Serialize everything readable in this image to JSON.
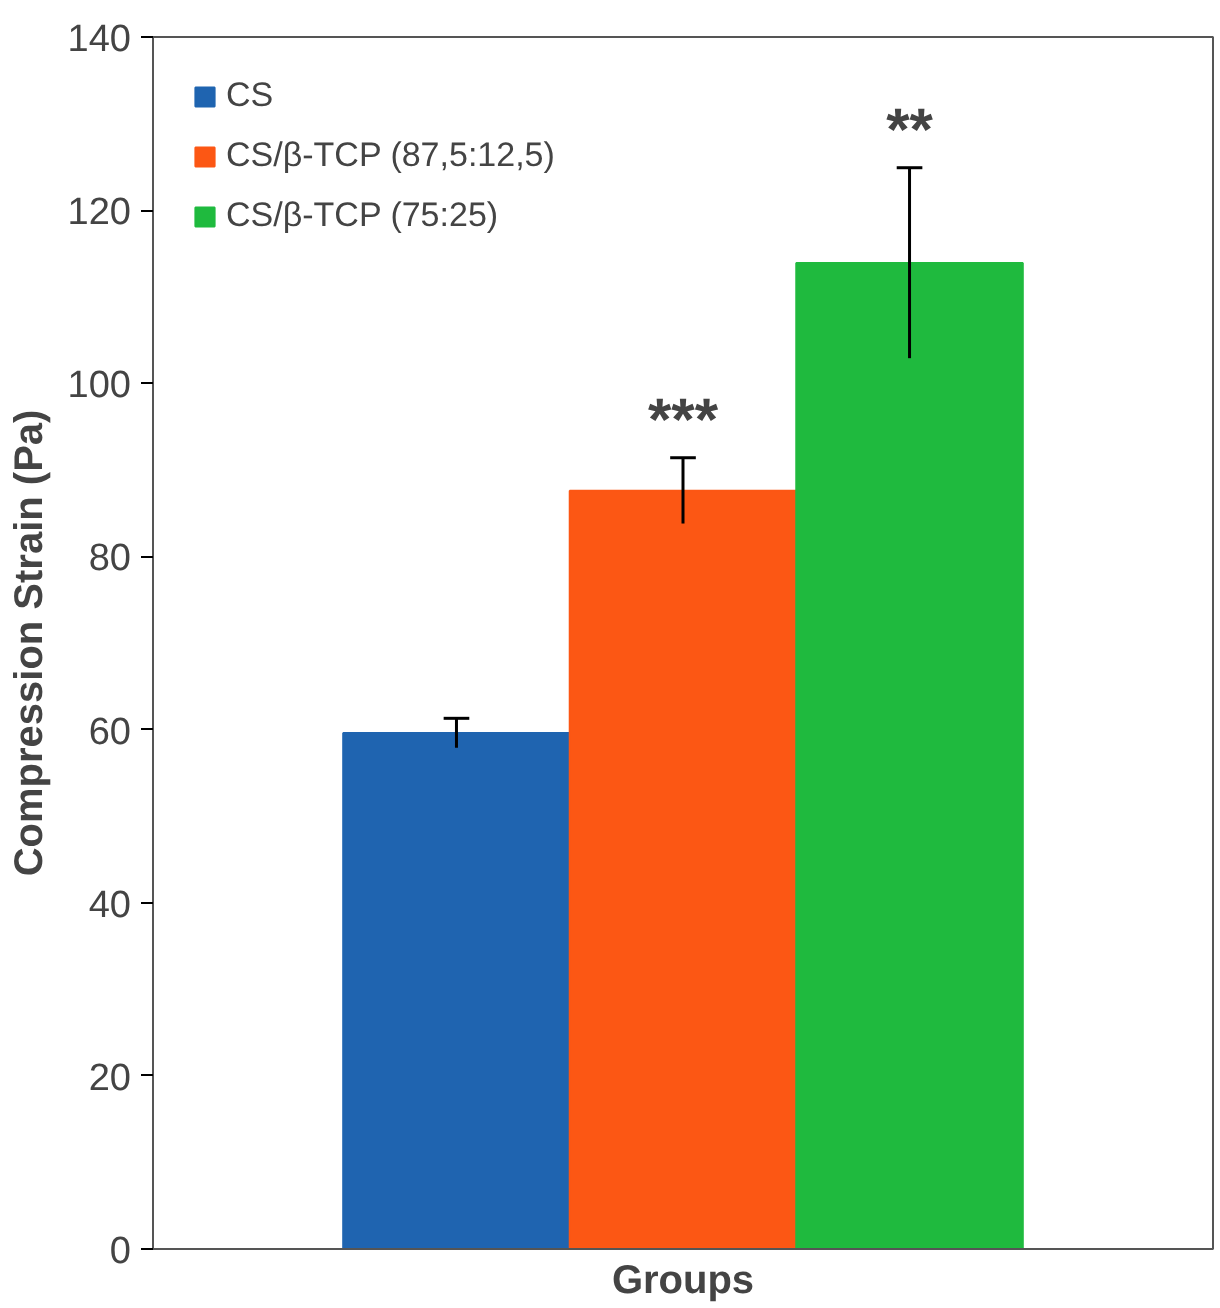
{
  "chart_data": {
    "type": "bar",
    "xlabel": "Groups",
    "ylabel": "Compression Strain (Pa)",
    "categories": [
      null
    ],
    "series": [
      {
        "name": "CS",
        "color": "#1f64b0",
        "values": [
          59.6
        ],
        "errors": [
          1.7
        ]
      },
      {
        "name": "CS/β-TCP (87,5:12,5)",
        "color": "#fc5714",
        "values": [
          87.6
        ],
        "errors": [
          3.8
        ]
      },
      {
        "name": "CS/β-TCP (75:25)",
        "color": "#1fba3e",
        "values": [
          113.9
        ],
        "errors": [
          11
        ]
      }
    ],
    "ylim": [
      0,
      140
    ],
    "yticks": [
      0,
      20,
      40,
      60,
      80,
      100,
      120,
      140
    ],
    "legend": "top left",
    "annotations": [
      {
        "text": "***",
        "y": 91.4
      },
      {
        "text": "**",
        "y": 124.9
      }
    ]
  }
}
